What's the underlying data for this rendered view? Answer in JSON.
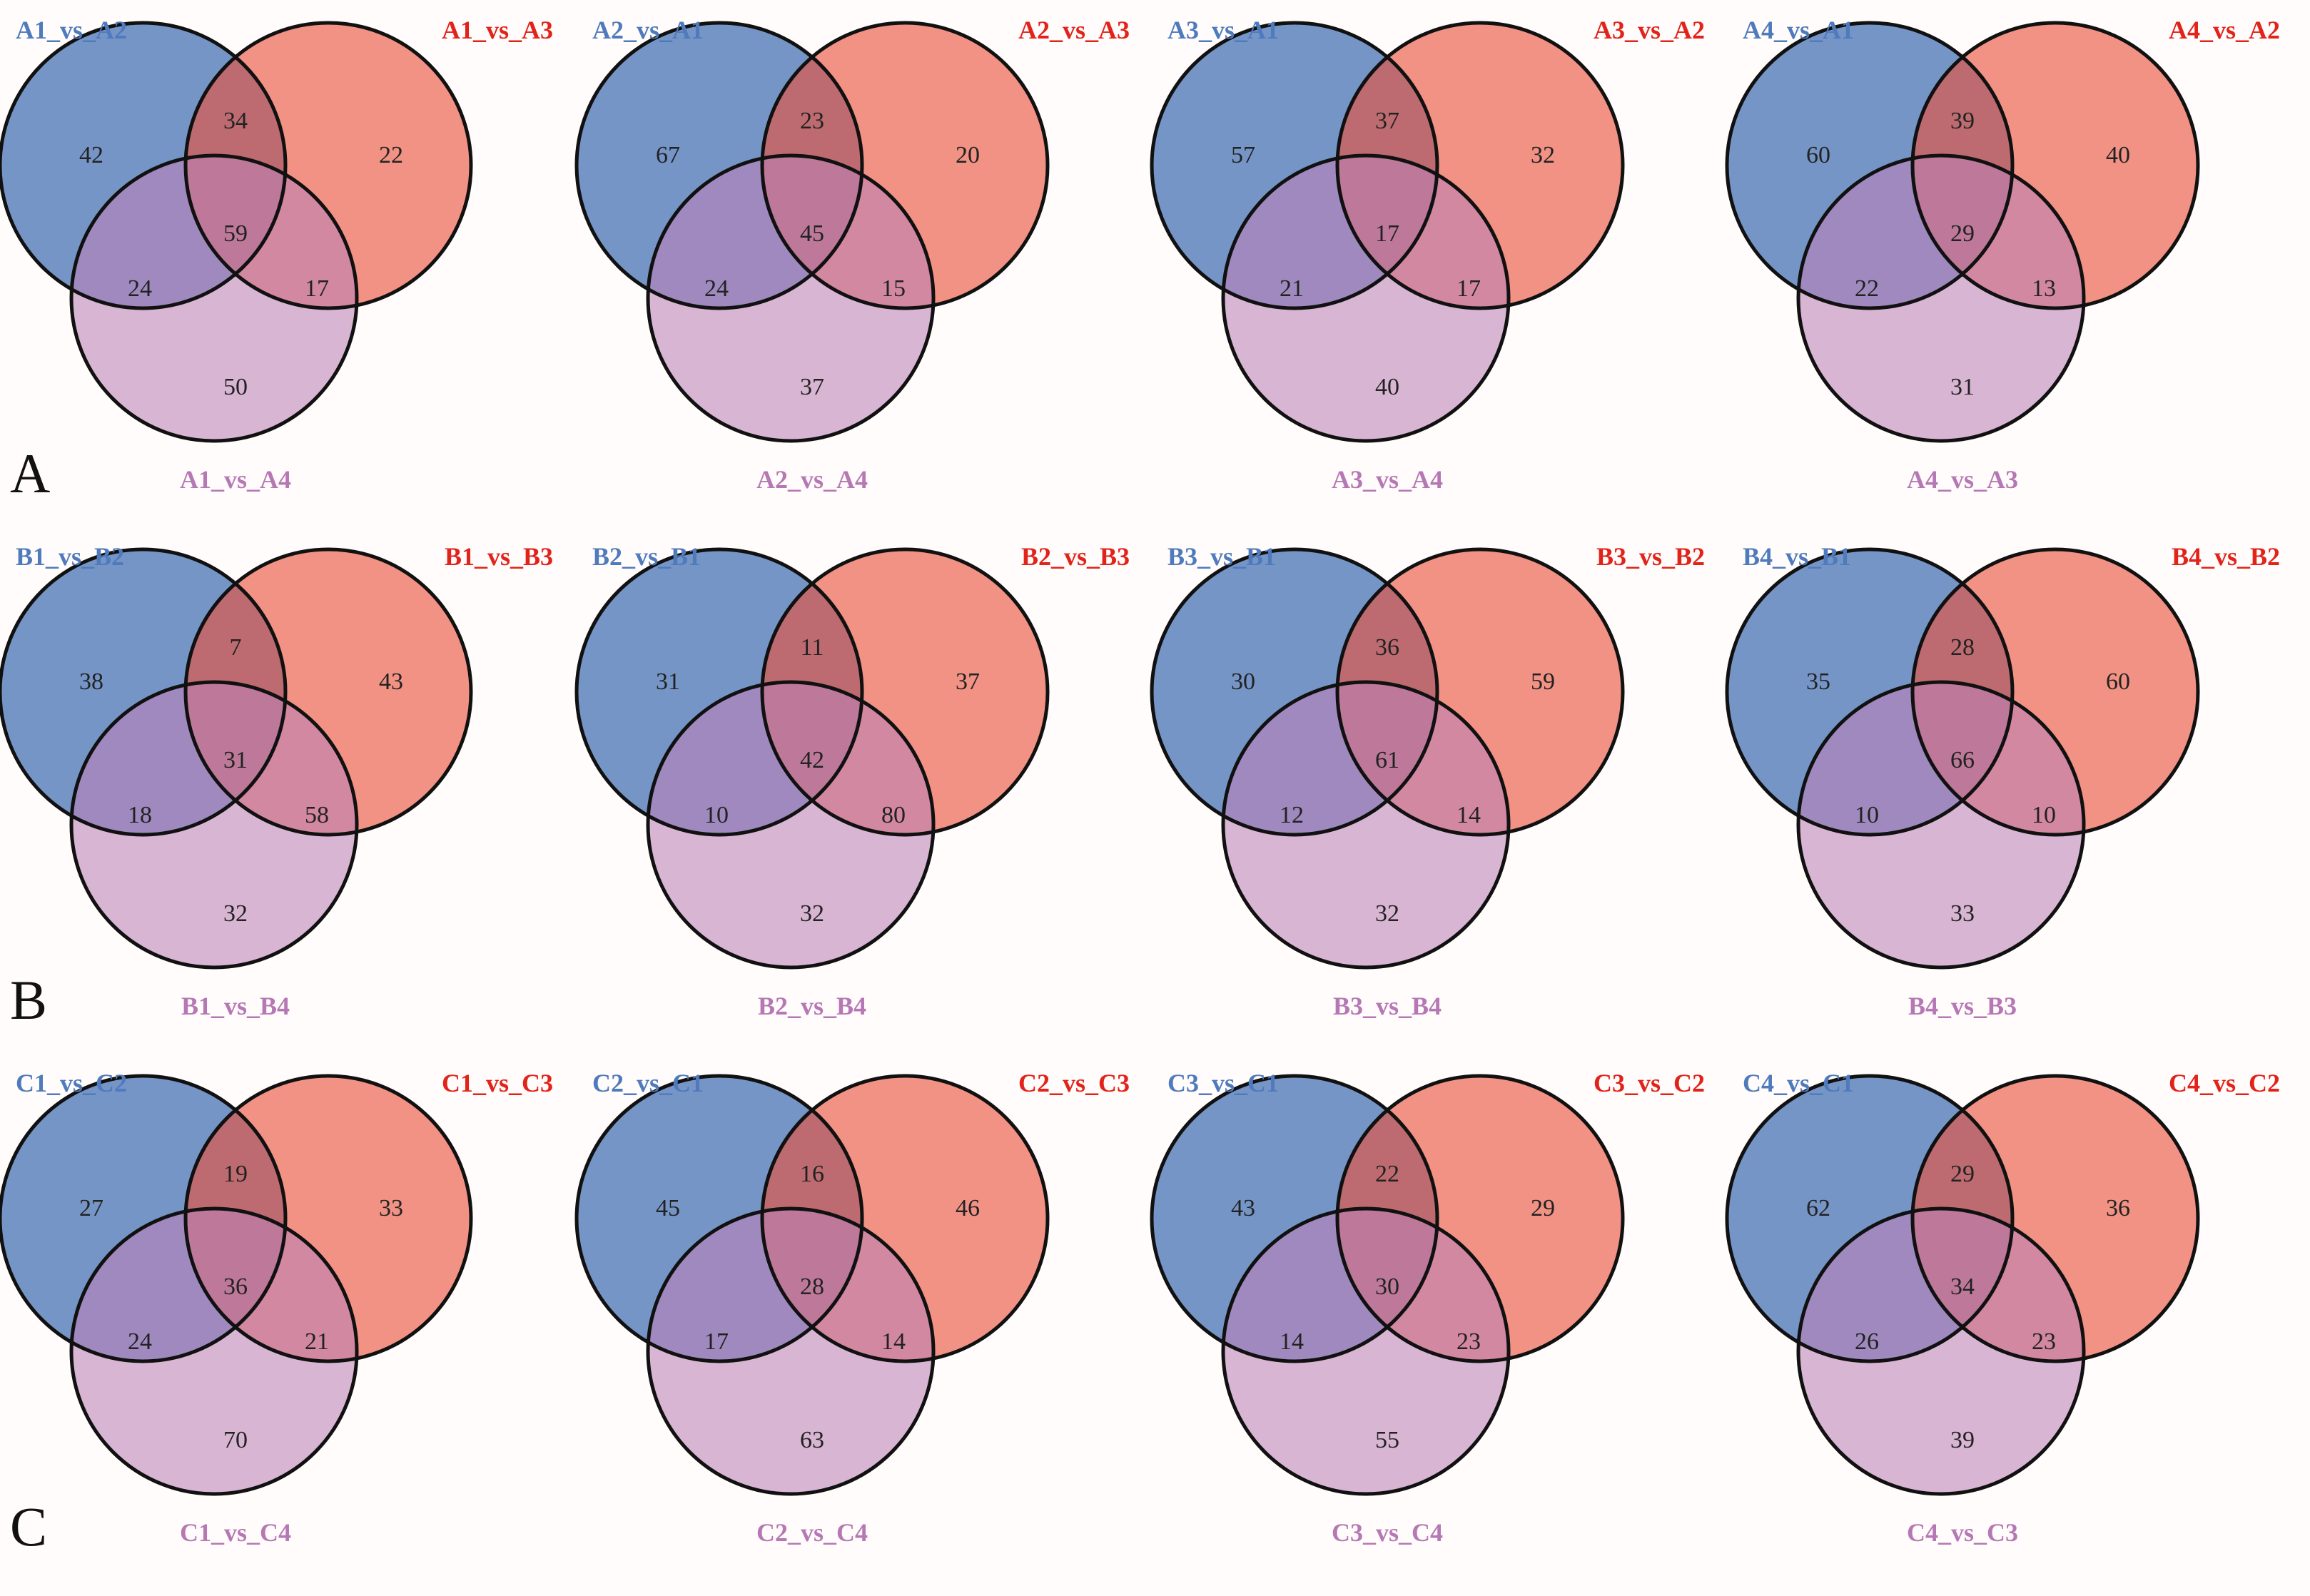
{
  "colors": {
    "background": "#fffcfb",
    "set_left": "#6f8fc4",
    "set_right": "#e8513a",
    "set_bottom": "#bd82b8",
    "label_left": "#4f7bbd",
    "label_right": "#e2231a",
    "label_bottom": "#b678b4",
    "outline": "#111111"
  },
  "chart_data": {
    "type": "venn3",
    "panels": [
      {
        "letter": "A",
        "diagrams": [
          {
            "labels": {
              "left": "A1_vs_A2",
              "right": "A1_vs_A3",
              "bottom": "A1_vs_A4"
            },
            "regions": {
              "left_only": 42,
              "left_right": 34,
              "right_only": 22,
              "all": 59,
              "left_bottom": 24,
              "right_bottom": 17,
              "bottom_only": 50
            }
          },
          {
            "labels": {
              "left": "A2_vs_A1",
              "right": "A2_vs_A3",
              "bottom": "A2_vs_A4"
            },
            "regions": {
              "left_only": 67,
              "left_right": 23,
              "right_only": 20,
              "all": 45,
              "left_bottom": 24,
              "right_bottom": 15,
              "bottom_only": 37
            }
          },
          {
            "labels": {
              "left": "A3_vs_A1",
              "right": "A3_vs_A2",
              "bottom": "A3_vs_A4"
            },
            "regions": {
              "left_only": 57,
              "left_right": 37,
              "right_only": 32,
              "all": 17,
              "left_bottom": 21,
              "right_bottom": 17,
              "bottom_only": 40
            }
          },
          {
            "labels": {
              "left": "A4_vs_A1",
              "right": "A4_vs_A2",
              "bottom": "A4_vs_A3"
            },
            "regions": {
              "left_only": 60,
              "left_right": 39,
              "right_only": 40,
              "all": 29,
              "left_bottom": 22,
              "right_bottom": 13,
              "bottom_only": 31
            }
          }
        ]
      },
      {
        "letter": "B",
        "diagrams": [
          {
            "labels": {
              "left": "B1_vs_B2",
              "right": "B1_vs_B3",
              "bottom": "B1_vs_B4"
            },
            "regions": {
              "left_only": 38,
              "left_right": 7,
              "right_only": 43,
              "all": 31,
              "left_bottom": 18,
              "right_bottom": 58,
              "bottom_only": 32
            }
          },
          {
            "labels": {
              "left": "B2_vs_B1",
              "right": "B2_vs_B3",
              "bottom": "B2_vs_B4"
            },
            "regions": {
              "left_only": 31,
              "left_right": 11,
              "right_only": 37,
              "all": 42,
              "left_bottom": 10,
              "right_bottom": 80,
              "bottom_only": 32
            }
          },
          {
            "labels": {
              "left": "B3_vs_B1",
              "right": "B3_vs_B2",
              "bottom": "B3_vs_B4"
            },
            "regions": {
              "left_only": 30,
              "left_right": 36,
              "right_only": 59,
              "all": 61,
              "left_bottom": 12,
              "right_bottom": 14,
              "bottom_only": 32
            }
          },
          {
            "labels": {
              "left": "B4_vs_B1",
              "right": "B4_vs_B2",
              "bottom": "B4_vs_B3"
            },
            "regions": {
              "left_only": 35,
              "left_right": 28,
              "right_only": 60,
              "all": 66,
              "left_bottom": 10,
              "right_bottom": 10,
              "bottom_only": 33
            }
          }
        ]
      },
      {
        "letter": "C",
        "diagrams": [
          {
            "labels": {
              "left": "C1_vs_C2",
              "right": "C1_vs_C3",
              "bottom": "C1_vs_C4"
            },
            "regions": {
              "left_only": 27,
              "left_right": 19,
              "right_only": 33,
              "all": 36,
              "left_bottom": 24,
              "right_bottom": 21,
              "bottom_only": 70
            }
          },
          {
            "labels": {
              "left": "C2_vs_C1",
              "right": "C2_vs_C3",
              "bottom": "C2_vs_C4"
            },
            "regions": {
              "left_only": 45,
              "left_right": 16,
              "right_only": 46,
              "all": 28,
              "left_bottom": 17,
              "right_bottom": 14,
              "bottom_only": 63
            }
          },
          {
            "labels": {
              "left": "C3_vs_C1",
              "right": "C3_vs_C2",
              "bottom": "C3_vs_C4"
            },
            "regions": {
              "left_only": 43,
              "left_right": 22,
              "right_only": 29,
              "all": 30,
              "left_bottom": 14,
              "right_bottom": 23,
              "bottom_only": 55
            }
          },
          {
            "labels": {
              "left": "C4_vs_C1",
              "right": "C4_vs_C2",
              "bottom": "C4_vs_C3"
            },
            "regions": {
              "left_only": 62,
              "left_right": 29,
              "right_only": 36,
              "all": 34,
              "left_bottom": 26,
              "right_bottom": 23,
              "bottom_only": 39
            }
          }
        ]
      }
    ]
  }
}
